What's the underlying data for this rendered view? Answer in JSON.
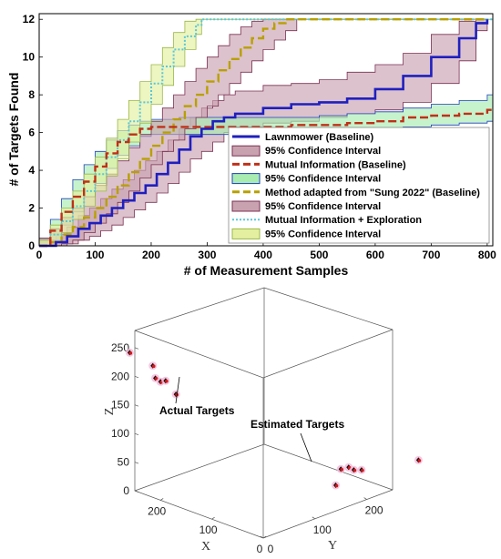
{
  "chart_data": [
    {
      "type": "line",
      "title": "",
      "xlabel": "# of Measurement Samples",
      "ylabel": "# of Targets Found",
      "xlim": [
        0,
        810
      ],
      "ylim": [
        0,
        12.3
      ],
      "xticks": [
        "0",
        "100",
        "200",
        "300",
        "400",
        "500",
        "600",
        "700",
        "800"
      ],
      "yticks": [
        "0",
        "2",
        "4",
        "6",
        "8",
        "10",
        "12"
      ],
      "legend_position": "lower-right",
      "grid": false,
      "series": [
        {
          "name": "Lawnmower (Baseline)",
          "color": "#1f1fbf",
          "style": "solid",
          "x": [
            0,
            30,
            50,
            70,
            90,
            110,
            130,
            150,
            170,
            190,
            210,
            230,
            250,
            270,
            290,
            310,
            330,
            350,
            400,
            450,
            500,
            550,
            600,
            650,
            700,
            750,
            780,
            800
          ],
          "y": [
            0,
            0.2,
            0.5,
            0.9,
            1.2,
            1.6,
            2.0,
            2.4,
            2.8,
            3.2,
            3.8,
            4.4,
            5.1,
            5.8,
            6.2,
            6.6,
            6.8,
            7.0,
            7.3,
            7.5,
            7.6,
            7.8,
            8.3,
            9.0,
            10.0,
            11.0,
            11.8,
            12.0
          ],
          "lower": [
            0,
            0,
            0.1,
            0.3,
            0.5,
            0.8,
            1.1,
            1.5,
            1.9,
            2.3,
            2.8,
            3.3,
            3.9,
            4.6,
            5.0,
            5.5,
            6.0,
            6.3,
            6.5,
            6.6,
            6.8,
            7.0,
            7.2,
            7.6,
            8.6,
            9.8,
            11.4,
            12.0
          ],
          "upper": [
            0.3,
            0.6,
            1.0,
            1.6,
            2.0,
            2.5,
            3.0,
            3.5,
            4.0,
            4.5,
            5.0,
            5.6,
            6.2,
            6.8,
            7.3,
            7.7,
            8.0,
            8.2,
            8.5,
            8.6,
            8.8,
            9.2,
            9.6,
            10.2,
            11.2,
            11.9,
            12.0,
            12.0
          ]
        },
        {
          "name": "Mutual Information (Baseline)",
          "color": "#c03018",
          "style": "dashed",
          "x": [
            0,
            20,
            40,
            60,
            80,
            100,
            120,
            140,
            160,
            180,
            200,
            250,
            300,
            350,
            400,
            450,
            500,
            550,
            600,
            650,
            700,
            750,
            800,
            810
          ],
          "y": [
            0,
            0.8,
            1.8,
            2.6,
            3.4,
            4.2,
            4.9,
            5.5,
            5.9,
            6.2,
            6.3,
            6.3,
            6.3,
            6.3,
            6.3,
            6.4,
            6.4,
            6.5,
            6.6,
            6.8,
            6.9,
            7.0,
            7.2,
            7.3
          ],
          "lower": [
            0,
            0.3,
            1.1,
            1.8,
            2.6,
            3.3,
            4.1,
            4.8,
            5.3,
            5.8,
            5.9,
            5.9,
            5.9,
            5.9,
            5.9,
            6.0,
            6.0,
            6.1,
            6.2,
            6.3,
            6.4,
            6.5,
            6.6,
            6.7
          ],
          "upper": [
            0.4,
            1.4,
            2.5,
            3.5,
            4.3,
            5.0,
            5.6,
            6.1,
            6.4,
            6.6,
            6.7,
            6.8,
            6.8,
            6.8,
            6.8,
            6.8,
            6.9,
            7.0,
            7.1,
            7.3,
            7.5,
            7.7,
            8.0,
            8.0
          ]
        },
        {
          "name": "Method adapted from \"Sung 2022\" (Baseline)",
          "color": "#b8a000",
          "style": "dashed",
          "x": [
            0,
            20,
            40,
            60,
            80,
            100,
            120,
            140,
            160,
            180,
            200,
            220,
            240,
            260,
            280,
            300,
            320,
            340,
            360,
            380,
            400,
            420,
            440,
            460,
            800
          ],
          "y": [
            0,
            0.2,
            0.6,
            1.0,
            1.5,
            2.0,
            2.6,
            3.2,
            3.9,
            4.6,
            5.3,
            6.0,
            6.7,
            7.4,
            8.0,
            8.7,
            9.3,
            9.9,
            10.5,
            11.0,
            11.5,
            11.8,
            12.0,
            12.0,
            12.0
          ],
          "lower": [
            0,
            0,
            0.1,
            0.3,
            0.7,
            1.2,
            1.7,
            2.3,
            2.9,
            3.6,
            4.3,
            5.0,
            5.6,
            6.2,
            6.8,
            7.4,
            8.0,
            8.6,
            9.2,
            9.8,
            10.4,
            10.9,
            11.4,
            12.0,
            12.0
          ],
          "upper": [
            0.4,
            0.9,
            1.5,
            2.0,
            2.6,
            3.2,
            3.8,
            4.5,
            5.2,
            5.9,
            6.6,
            7.3,
            8.0,
            8.7,
            9.4,
            10.0,
            10.6,
            11.2,
            11.6,
            11.9,
            12.0,
            12.0,
            12.0,
            12.0,
            12.0
          ]
        },
        {
          "name": "Mutual Information + Exploration",
          "color": "#58c8d8",
          "style": "dotted",
          "x": [
            0,
            20,
            40,
            60,
            80,
            100,
            120,
            140,
            160,
            180,
            200,
            220,
            240,
            260,
            280,
            290,
            810
          ],
          "y": [
            0,
            0.6,
            1.3,
            2.1,
            2.9,
            3.8,
            4.7,
            5.6,
            6.6,
            7.6,
            8.6,
            9.5,
            10.4,
            11.1,
            11.7,
            12.0,
            12.0
          ],
          "lower": [
            0,
            0.2,
            0.7,
            1.4,
            2.1,
            2.9,
            3.7,
            4.6,
            5.5,
            6.5,
            7.5,
            8.5,
            9.5,
            10.4,
            11.2,
            12.0,
            12.0
          ],
          "upper": [
            0.3,
            1.1,
            2.0,
            2.9,
            3.8,
            4.7,
            5.7,
            6.7,
            7.7,
            8.7,
            9.6,
            10.5,
            11.3,
            11.9,
            12.0,
            12.0,
            12.0
          ]
        }
      ],
      "confidence_interval_label": "95% Confidence Interval",
      "legend_entries": [
        {
          "label": "Lawnmower (Baseline)",
          "kind": "line",
          "color": "#1f1fbf"
        },
        {
          "label": "95% Confidence Interval",
          "kind": "patch",
          "color": "#c9a2b0",
          "edge": "#7a3050"
        },
        {
          "label": "Mutual Information (Baseline)",
          "kind": "dash",
          "color": "#c03018"
        },
        {
          "label": "95% Confidence Interval",
          "kind": "patch",
          "color": "#a8ecb0",
          "edge": "#1f3fbf"
        },
        {
          "label": "Method adapted from \"Sung 2022\" (Baseline)",
          "kind": "dash",
          "color": "#b8a000"
        },
        {
          "label": "95% Confidence Interval",
          "kind": "patch",
          "color": "#c9a2b0",
          "edge": "#7a3050"
        },
        {
          "label": "Mutual Information + Exploration",
          "kind": "dot",
          "color": "#58c8d8"
        },
        {
          "label": "95% Confidence Interval",
          "kind": "patch",
          "color": "#e4f0a0",
          "edge": "#9ab848"
        }
      ]
    },
    {
      "type": "scatter",
      "projection": "3d",
      "title": "",
      "xlabel": "X",
      "ylabel": "Y",
      "zlabel": "Z",
      "xticks": [
        "200",
        "100",
        "0"
      ],
      "yticks": [
        "0",
        "100",
        "200"
      ],
      "zticks": [
        "0",
        "50",
        "100",
        "150",
        "200",
        "250"
      ],
      "annotations": [
        {
          "text": "Actual Targets"
        },
        {
          "text": "Estimated Targets"
        }
      ],
      "targets": [
        {
          "x": 260,
          "y": 0,
          "z": 238
        },
        {
          "x": 215,
          "y": 0,
          "z": 230
        },
        {
          "x": 210,
          "y": 0,
          "z": 210
        },
        {
          "x": 200,
          "y": 0,
          "z": 207
        },
        {
          "x": 190,
          "y": 0,
          "z": 212
        },
        {
          "x": 170,
          "y": 0,
          "z": 195
        },
        {
          "x": 0,
          "y": 150,
          "z": 70
        },
        {
          "x": 0,
          "y": 165,
          "z": 68
        },
        {
          "x": 0,
          "y": 175,
          "z": 60
        },
        {
          "x": 0,
          "y": 190,
          "z": 55
        },
        {
          "x": 0,
          "y": 140,
          "z": 45
        },
        {
          "x": 0,
          "y": 300,
          "z": 35
        }
      ]
    }
  ]
}
